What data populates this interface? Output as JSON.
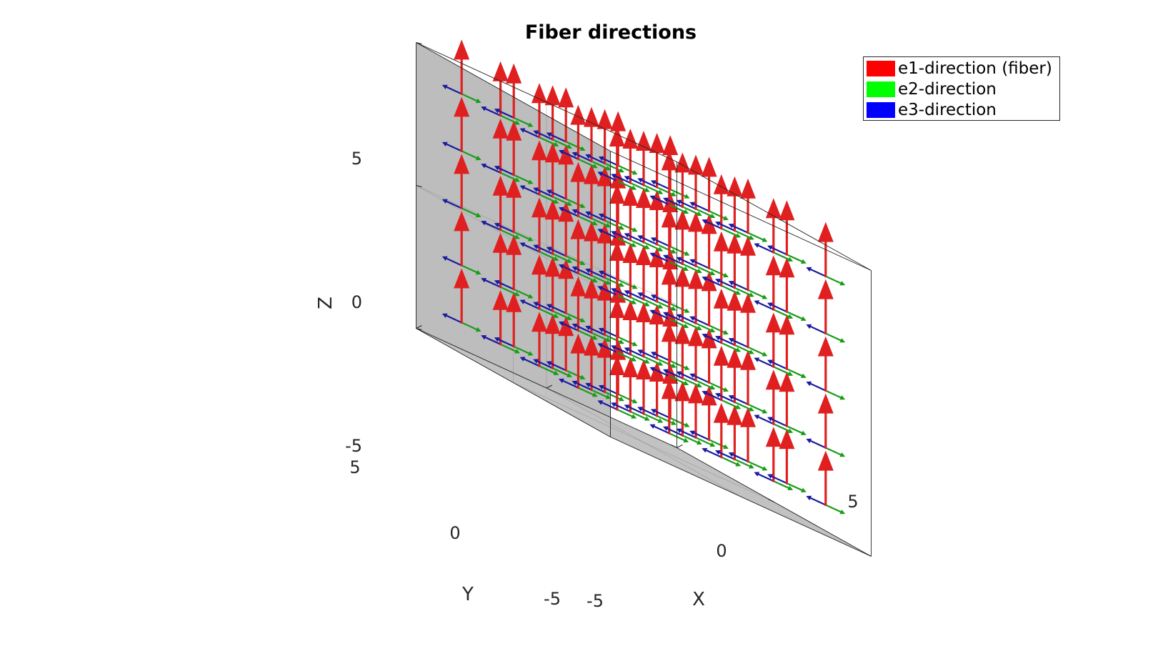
{
  "chart_data": {
    "type": "quiver3d",
    "title": "Fiber directions",
    "xlabel": "X",
    "ylabel": "Y",
    "zlabel": "Z",
    "xlim": [
      -5,
      5
    ],
    "ylim": [
      -5,
      5
    ],
    "zlim": [
      -5,
      5
    ],
    "xticks": [
      "-5",
      "0",
      "5"
    ],
    "yticks": [
      "-5",
      "0",
      "5"
    ],
    "zticks": [
      "-5",
      "0",
      "5"
    ],
    "grid": true,
    "legend_location": "top-right",
    "grid_points": {
      "x": [
        -4,
        -2,
        0,
        2,
        4
      ],
      "y": [
        -4,
        -2,
        0,
        2,
        4
      ],
      "z": [
        -4,
        -2,
        0,
        2,
        4
      ]
    },
    "series": [
      {
        "name": "e1-direction (fiber)",
        "color": "#ff0000",
        "vector": [
          0,
          0,
          1
        ]
      },
      {
        "name": "e2-direction",
        "color": "#00ff00",
        "vector": [
          1,
          0,
          0
        ]
      },
      {
        "name": "e3-direction",
        "color": "#0000ff",
        "vector": [
          -1,
          0,
          0
        ]
      }
    ]
  }
}
